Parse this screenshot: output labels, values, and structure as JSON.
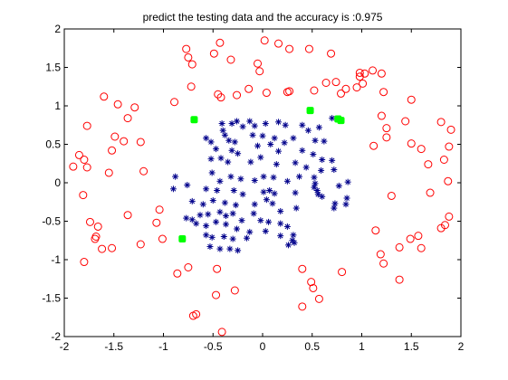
{
  "chart_data": {
    "type": "scatter",
    "title": "predict the testing data and the accuracy is :0.975",
    "xlabel": "",
    "ylabel": "",
    "xlim": [
      -2,
      2
    ],
    "ylim": [
      -2,
      2
    ],
    "xticks": [
      "-2",
      "-1.5",
      "-1",
      "-0.5",
      "0",
      "0.5",
      "1",
      "1.5",
      "2"
    ],
    "yticks": [
      "-2",
      "-1.5",
      "-1",
      "-0.5",
      "0",
      "0.5",
      "1",
      "1.5",
      "2"
    ],
    "grid": false,
    "legend": "none",
    "series": [
      {
        "marker": "circle",
        "color": "#ff0000",
        "points": [
          [
            -0.77,
            1.74
          ],
          [
            -0.75,
            1.63
          ],
          [
            -0.43,
            1.82
          ],
          [
            -0.49,
            1.68
          ],
          [
            -0.71,
            1.54
          ],
          [
            -0.32,
            1.6
          ],
          [
            0.02,
            1.85
          ],
          [
            0.16,
            1.81
          ],
          [
            0.27,
            1.74
          ],
          [
            0.47,
            1.74
          ],
          [
            0.69,
            1.68
          ],
          [
            -0.05,
            1.55
          ],
          [
            -0.03,
            1.45
          ],
          [
            -0.72,
            1.25
          ],
          [
            -0.45,
            1.15
          ],
          [
            -0.42,
            1.11
          ],
          [
            -0.14,
            1.22
          ],
          [
            -0.26,
            1.14
          ],
          [
            0.04,
            1.17
          ],
          [
            0.27,
            1.19
          ],
          [
            0.25,
            1.18
          ],
          [
            0.52,
            1.2
          ],
          [
            0.64,
            1.3
          ],
          [
            0.74,
            1.31
          ],
          [
            0.84,
            1.22
          ],
          [
            0.79,
            1.16
          ],
          [
            0.95,
            1.24
          ],
          [
            0.98,
            1.38
          ],
          [
            0.98,
            1.43
          ],
          [
            1.03,
            1.42
          ],
          [
            1.11,
            1.46
          ],
          [
            1.2,
            1.42
          ],
          [
            1.01,
            1.29
          ],
          [
            -0.89,
            1.05
          ],
          [
            -1.6,
            1.12
          ],
          [
            -1.46,
            1.02
          ],
          [
            -1.29,
            0.98
          ],
          [
            -1.36,
            0.84
          ],
          [
            -1.77,
            0.74
          ],
          [
            -1.49,
            0.6
          ],
          [
            -1.52,
            0.42
          ],
          [
            -1.4,
            0.54
          ],
          [
            -1.23,
            0.53
          ],
          [
            -1.85,
            0.36
          ],
          [
            -1.8,
            0.3
          ],
          [
            -1.91,
            0.21
          ],
          [
            -1.77,
            0.2
          ],
          [
            -1.55,
            0.13
          ],
          [
            -1.2,
            0.15
          ],
          [
            -1.81,
            -0.16
          ],
          [
            -1.04,
            -0.35
          ],
          [
            -1.36,
            -0.42
          ],
          [
            -1.74,
            -0.51
          ],
          [
            -1.07,
            -0.52
          ],
          [
            -1.66,
            -0.57
          ],
          [
            -1.68,
            -0.7
          ],
          [
            -1.69,
            -0.73
          ],
          [
            -1.62,
            -0.86
          ],
          [
            -1.52,
            -0.85
          ],
          [
            -1.23,
            -0.8
          ],
          [
            -1.01,
            -0.73
          ],
          [
            -1.8,
            -1.03
          ],
          [
            -0.75,
            -1.1
          ],
          [
            -0.86,
            -1.18
          ],
          [
            -0.46,
            -1.12
          ],
          [
            -0.47,
            -1.46
          ],
          [
            -0.28,
            -1.4
          ],
          [
            -0.67,
            -1.71
          ],
          [
            -0.7,
            -1.73
          ],
          [
            -0.41,
            -1.94
          ],
          [
            0.4,
            -1.12
          ],
          [
            0.49,
            -1.29
          ],
          [
            0.51,
            -1.37
          ],
          [
            0.57,
            -1.51
          ],
          [
            0.4,
            -1.61
          ],
          [
            0.8,
            -1.16
          ],
          [
            1.22,
            1.18
          ],
          [
            1.5,
            1.08
          ],
          [
            1.2,
            0.87
          ],
          [
            1.25,
            0.71
          ],
          [
            1.12,
            0.48
          ],
          [
            1.44,
            0.8
          ],
          [
            1.25,
            0.59
          ],
          [
            1.8,
            0.79
          ],
          [
            1.9,
            0.69
          ],
          [
            1.5,
            0.51
          ],
          [
            1.6,
            0.44
          ],
          [
            1.83,
            0.3
          ],
          [
            1.88,
            0.47
          ],
          [
            1.67,
            0.24
          ],
          [
            1.87,
            0.02
          ],
          [
            1.69,
            -0.13
          ],
          [
            1.3,
            -0.17
          ],
          [
            1.88,
            -0.44
          ],
          [
            1.8,
            -0.59
          ],
          [
            1.84,
            -0.55
          ],
          [
            1.14,
            -0.62
          ],
          [
            1.57,
            -0.69
          ],
          [
            1.49,
            -0.73
          ],
          [
            1.6,
            -0.85
          ],
          [
            1.38,
            -0.84
          ],
          [
            1.19,
            -0.93
          ],
          [
            1.22,
            -1.05
          ],
          [
            1.38,
            -1.26
          ]
        ]
      },
      {
        "marker": "asterisk",
        "color": "#00008b",
        "points": [
          [
            -0.41,
            0.77
          ],
          [
            -0.4,
            0.68
          ],
          [
            -0.38,
            0.62
          ],
          [
            -0.31,
            0.77
          ],
          [
            -0.26,
            0.8
          ],
          [
            -0.2,
            0.73
          ],
          [
            -0.13,
            0.8
          ],
          [
            -0.08,
            0.74
          ],
          [
            0.03,
            0.77
          ],
          [
            0.16,
            0.79
          ],
          [
            0.23,
            0.75
          ],
          [
            0.4,
            0.75
          ],
          [
            0.46,
            0.68
          ],
          [
            0.57,
            0.72
          ],
          [
            0.7,
            0.84
          ],
          [
            -0.57,
            0.58
          ],
          [
            -0.52,
            0.53
          ],
          [
            -0.34,
            0.55
          ],
          [
            -0.28,
            0.53
          ],
          [
            -0.1,
            0.62
          ],
          [
            0.0,
            0.61
          ],
          [
            0.12,
            0.58
          ],
          [
            0.22,
            0.52
          ],
          [
            0.31,
            0.58
          ],
          [
            0.53,
            0.55
          ],
          [
            0.62,
            0.54
          ],
          [
            -0.47,
            0.44
          ],
          [
            -0.31,
            0.42
          ],
          [
            -0.25,
            0.38
          ],
          [
            -0.05,
            0.48
          ],
          [
            0.08,
            0.5
          ],
          [
            0.16,
            0.41
          ],
          [
            0.4,
            0.42
          ],
          [
            0.51,
            0.37
          ],
          [
            0.6,
            0.3
          ],
          [
            0.7,
            0.29
          ],
          [
            -0.52,
            0.31
          ],
          [
            -0.42,
            0.32
          ],
          [
            -0.35,
            0.27
          ],
          [
            -0.12,
            0.27
          ],
          [
            -0.02,
            0.33
          ],
          [
            0.14,
            0.24
          ],
          [
            0.33,
            0.26
          ],
          [
            0.44,
            0.2
          ],
          [
            0.59,
            0.16
          ],
          [
            0.72,
            0.17
          ],
          [
            -0.88,
            0.08
          ],
          [
            -0.76,
            -0.03
          ],
          [
            -0.9,
            -0.08
          ],
          [
            -0.51,
            0.13
          ],
          [
            -0.43,
            0.02
          ],
          [
            -0.32,
            0.08
          ],
          [
            -0.22,
            0.05
          ],
          [
            -0.08,
            0.03
          ],
          [
            0.01,
            0.08
          ],
          [
            0.11,
            0.07
          ],
          [
            0.25,
            0.02
          ],
          [
            0.37,
            0.08
          ],
          [
            0.52,
            0.07
          ],
          [
            0.53,
            -0.01
          ],
          [
            0.52,
            -0.06
          ],
          [
            0.55,
            -0.1
          ],
          [
            0.56,
            -0.15
          ],
          [
            0.77,
            -0.04
          ],
          [
            0.86,
            0.01
          ],
          [
            -0.57,
            -0.08
          ],
          [
            -0.46,
            -0.1
          ],
          [
            -0.29,
            -0.1
          ],
          [
            -0.2,
            -0.15
          ],
          [
            0.01,
            -0.12
          ],
          [
            0.07,
            -0.1
          ],
          [
            0.04,
            -0.22
          ],
          [
            0.12,
            -0.14
          ],
          [
            0.33,
            -0.13
          ],
          [
            0.6,
            -0.18
          ],
          [
            0.73,
            -0.27
          ],
          [
            0.84,
            -0.28
          ],
          [
            0.85,
            -0.2
          ],
          [
            0.72,
            -0.33
          ],
          [
            -0.71,
            -0.24
          ],
          [
            -0.6,
            -0.28
          ],
          [
            -0.5,
            -0.23
          ],
          [
            -0.38,
            -0.26
          ],
          [
            -0.27,
            -0.29
          ],
          [
            -0.08,
            -0.28
          ],
          [
            0.1,
            -0.27
          ],
          [
            0.18,
            -0.37
          ],
          [
            0.34,
            -0.33
          ],
          [
            -0.77,
            -0.46
          ],
          [
            -0.71,
            -0.48
          ],
          [
            -0.63,
            -0.42
          ],
          [
            -0.55,
            -0.41
          ],
          [
            -0.43,
            -0.38
          ],
          [
            -0.37,
            -0.43
          ],
          [
            -0.3,
            -0.4
          ],
          [
            -0.21,
            -0.49
          ],
          [
            -0.09,
            -0.4
          ],
          [
            -0.02,
            -0.49
          ],
          [
            0.06,
            -0.51
          ],
          [
            0.18,
            -0.53
          ],
          [
            0.25,
            -0.57
          ],
          [
            -0.67,
            -0.53
          ],
          [
            -0.57,
            -0.56
          ],
          [
            -0.47,
            -0.51
          ],
          [
            -0.37,
            -0.54
          ],
          [
            -0.26,
            -0.6
          ],
          [
            -0.13,
            -0.64
          ],
          [
            0.03,
            -0.63
          ],
          [
            0.18,
            -0.69
          ],
          [
            0.31,
            -0.68
          ],
          [
            -0.57,
            -0.68
          ],
          [
            -0.51,
            -0.71
          ],
          [
            -0.39,
            -0.7
          ],
          [
            -0.3,
            -0.73
          ],
          [
            -0.16,
            -0.72
          ],
          [
            0.3,
            -0.75
          ],
          [
            0.32,
            -0.78
          ],
          [
            -0.53,
            -0.83
          ],
          [
            -0.43,
            -0.86
          ],
          [
            -0.33,
            -0.86
          ],
          [
            -0.25,
            -0.88
          ],
          [
            0.26,
            -0.81
          ]
        ]
      },
      {
        "marker": "filled-square",
        "color": "#00ff00",
        "points": [
          [
            -0.69,
            0.82
          ],
          [
            0.48,
            0.94
          ],
          [
            0.76,
            0.83
          ],
          [
            0.79,
            0.81
          ],
          [
            -0.81,
            -0.73
          ]
        ]
      }
    ]
  }
}
